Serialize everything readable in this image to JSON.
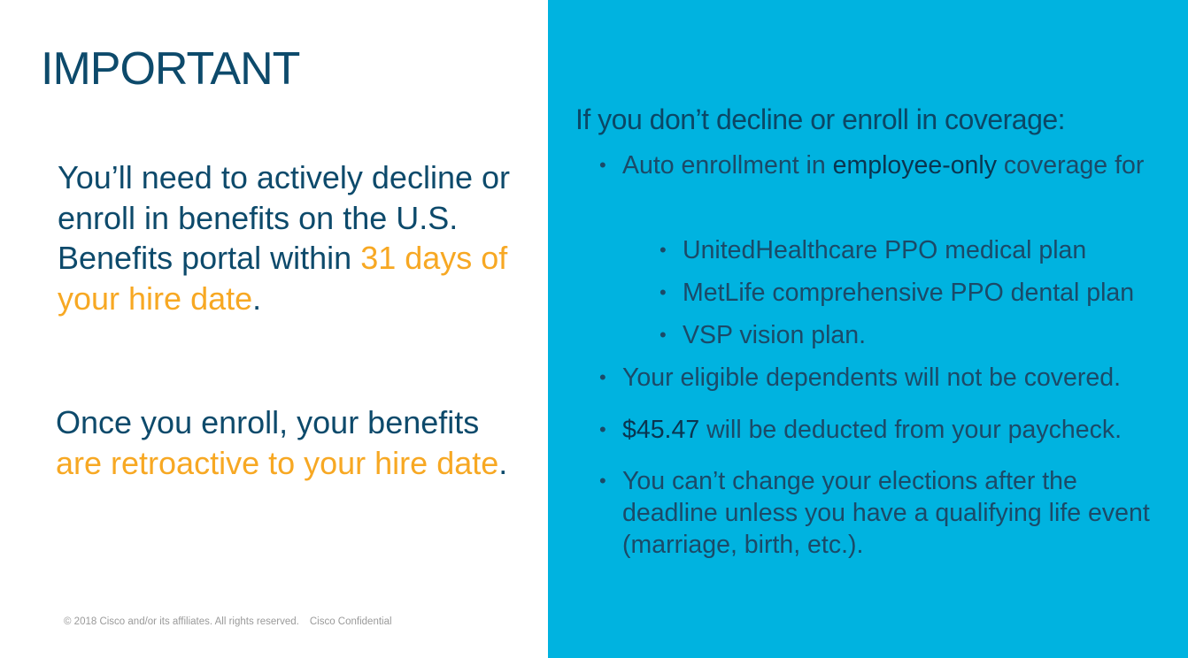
{
  "left": {
    "title": "IMPORTANT",
    "para1": {
      "text": "You’ll need to actively decline or enroll in benefits on the U.S. Benefits portal within ",
      "highlight": "31 days of your hire date",
      "end": "."
    },
    "para2": {
      "text": "Once you enroll, your benefits ",
      "highlight": "are retroactive to your hire date",
      "end": "."
    },
    "footer": {
      "copyright": "© 2018  Cisco and/or its affiliates. All rights reserved.",
      "confidential": "Cisco Confidential"
    }
  },
  "right": {
    "heading": "If you don’t decline or enroll in coverage:",
    "bullet1": {
      "pre": "Auto enrollment in ",
      "strong": "employee-only",
      "post": " coverage for"
    },
    "subbullets": [
      "UnitedHealthcare PPO medical plan",
      "MetLife comprehensive PPO dental plan",
      "VSP vision plan."
    ],
    "bullet2": "Your eligible dependents will not be covered.",
    "bullet3": {
      "strong": "$45.47",
      "post": " will be deducted from your paycheck."
    },
    "bullet4": "You can’t change your elections after the deadline unless you have a qualifying life event (marriage, birth, etc.)."
  },
  "colors": {
    "panel": "#00b3e0",
    "text": "#0d4a6b",
    "accent": "#f7a823"
  }
}
